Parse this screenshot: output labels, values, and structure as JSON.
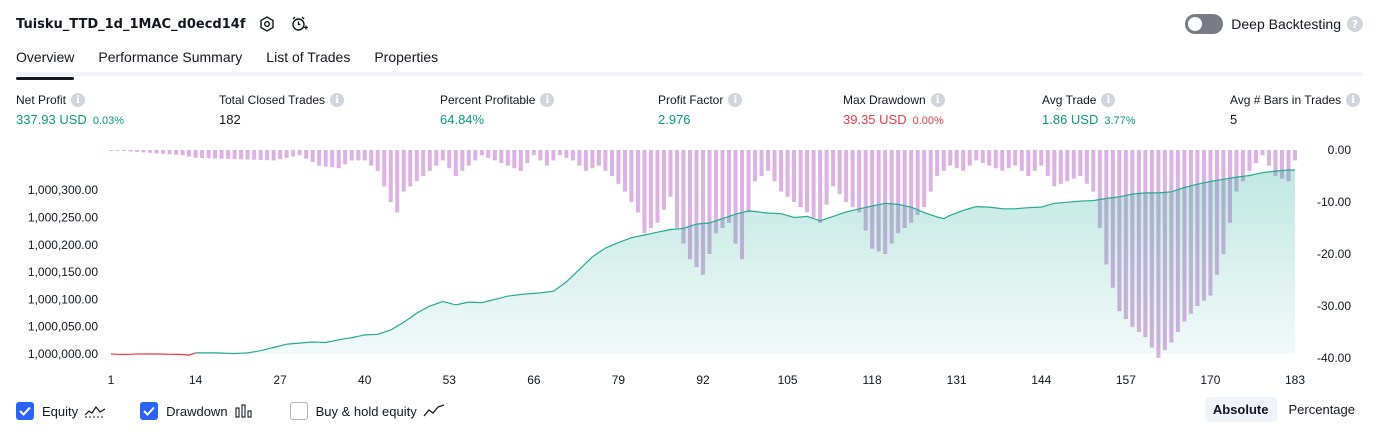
{
  "header": {
    "title": "Tuisku_TTD_1d_1MAC_d0ecd14f"
  },
  "deep_backtesting": {
    "label": "Deep Backtesting",
    "enabled": false
  },
  "tabs": [
    {
      "label": "Overview",
      "active": true
    },
    {
      "label": "Performance Summary",
      "active": false
    },
    {
      "label": "List of Trades",
      "active": false
    },
    {
      "label": "Properties",
      "active": false
    }
  ],
  "stats": [
    {
      "label": "Net Profit",
      "value": "337.93 USD",
      "pct": "0.03%",
      "color": "#089981"
    },
    {
      "label": "Total Closed Trades",
      "value": "182",
      "pct": "",
      "color": "#131722"
    },
    {
      "label": "Percent Profitable",
      "value": "64.84%",
      "pct": "",
      "color": "#089981"
    },
    {
      "label": "Profit Factor",
      "value": "2.976",
      "pct": "",
      "color": "#089981"
    },
    {
      "label": "Max Drawdown",
      "value": "39.35 USD",
      "pct": "0.00%",
      "color": "#f23645"
    },
    {
      "label": "Avg Trade",
      "value": "1.86 USD",
      "pct": "3.77%",
      "color": "#089981"
    },
    {
      "label": "Avg # Bars in Trades",
      "value": "5",
      "pct": "",
      "color": "#131722"
    }
  ],
  "chart_data": {
    "type": "area",
    "x_ticks": [
      "1",
      "14",
      "27",
      "40",
      "53",
      "66",
      "79",
      "92",
      "105",
      "118",
      "131",
      "144",
      "157",
      "170",
      "183"
    ],
    "left_axis_ticks": [
      "1,000,000.00",
      "1,000,050.00",
      "1,000,100.00",
      "1,000,150.00",
      "1,000,200.00",
      "1,000,250.00",
      "1,000,300.00"
    ],
    "right_axis_ticks": [
      "0.00",
      "-10.00",
      "-20.00",
      "-30.00",
      "-40.00"
    ],
    "equity_ylim": [
      1000000,
      1000337
    ],
    "drawdown_ylim": [
      -40,
      0
    ],
    "colors": {
      "equity_line": "#22ab94",
      "equity_fill": "#22ab94",
      "equity_negative": "#f23645",
      "drawdown_bar": "#ce93d8"
    },
    "equity_keypoints": [
      [
        1,
        1000000
      ],
      [
        3,
        999999
      ],
      [
        5,
        1000000
      ],
      [
        8,
        1000000
      ],
      [
        12,
        999999
      ],
      [
        13,
        999998
      ],
      [
        14,
        1000002
      ],
      [
        17,
        1000002
      ],
      [
        20,
        1000001
      ],
      [
        22,
        1000002
      ],
      [
        24,
        1000006
      ],
      [
        26,
        1000012
      ],
      [
        28,
        1000018
      ],
      [
        30,
        1000020
      ],
      [
        32,
        1000022
      ],
      [
        34,
        1000021
      ],
      [
        36,
        1000026
      ],
      [
        38,
        1000030
      ],
      [
        40,
        1000035
      ],
      [
        42,
        1000036
      ],
      [
        44,
        1000044
      ],
      [
        46,
        1000058
      ],
      [
        48,
        1000075
      ],
      [
        50,
        1000088
      ],
      [
        52,
        1000096
      ],
      [
        54,
        1000090
      ],
      [
        56,
        1000095
      ],
      [
        58,
        1000094
      ],
      [
        60,
        1000100
      ],
      [
        62,
        1000106
      ],
      [
        64,
        1000109
      ],
      [
        67,
        1000112
      ],
      [
        69,
        1000115
      ],
      [
        71,
        1000132
      ],
      [
        73,
        1000155
      ],
      [
        75,
        1000178
      ],
      [
        77,
        1000194
      ],
      [
        79,
        1000204
      ],
      [
        81,
        1000213
      ],
      [
        83,
        1000218
      ],
      [
        85,
        1000223
      ],
      [
        87,
        1000228
      ],
      [
        89,
        1000230
      ],
      [
        91,
        1000238
      ],
      [
        93,
        1000240
      ],
      [
        95,
        1000248
      ],
      [
        97,
        1000256
      ],
      [
        99,
        1000262
      ],
      [
        100,
        1000261
      ],
      [
        102,
        1000258
      ],
      [
        104,
        1000257
      ],
      [
        106,
        1000250
      ],
      [
        108,
        1000252
      ],
      [
        110,
        1000244
      ],
      [
        112,
        1000252
      ],
      [
        114,
        1000260
      ],
      [
        116,
        1000266
      ],
      [
        118,
        1000271
      ],
      [
        120,
        1000276
      ],
      [
        122,
        1000274
      ],
      [
        124,
        1000269
      ],
      [
        126,
        1000259
      ],
      [
        128,
        1000251
      ],
      [
        129,
        1000248
      ],
      [
        130,
        1000254
      ],
      [
        132,
        1000263
      ],
      [
        134,
        1000270
      ],
      [
        136,
        1000269
      ],
      [
        138,
        1000266
      ],
      [
        140,
        1000266
      ],
      [
        142,
        1000268
      ],
      [
        144,
        1000269
      ],
      [
        146,
        1000276
      ],
      [
        148,
        1000278
      ],
      [
        150,
        1000280
      ],
      [
        152,
        1000281
      ],
      [
        154,
        1000285
      ],
      [
        156,
        1000288
      ],
      [
        158,
        1000293
      ],
      [
        160,
        1000295
      ],
      [
        162,
        1000295
      ],
      [
        164,
        1000297
      ],
      [
        166,
        1000305
      ],
      [
        168,
        1000311
      ],
      [
        170,
        1000316
      ],
      [
        172,
        1000320
      ],
      [
        174,
        1000324
      ],
      [
        176,
        1000327
      ],
      [
        178,
        1000332
      ],
      [
        180,
        1000335
      ],
      [
        182,
        1000337
      ],
      [
        183,
        1000337
      ]
    ],
    "drawdown_keypoints": [
      [
        1,
        0
      ],
      [
        12,
        -1
      ],
      [
        14,
        -1.5
      ],
      [
        26,
        -2
      ],
      [
        30,
        -1
      ],
      [
        33,
        -3
      ],
      [
        36,
        -3.5
      ],
      [
        38,
        -2
      ],
      [
        40,
        -2
      ],
      [
        42,
        -4
      ],
      [
        44,
        -10
      ],
      [
        45,
        -12
      ],
      [
        46,
        -8
      ],
      [
        48,
        -6
      ],
      [
        50,
        -4
      ],
      [
        52,
        -2
      ],
      [
        54,
        -5
      ],
      [
        56,
        -3
      ],
      [
        58,
        -1
      ],
      [
        60,
        -2
      ],
      [
        62,
        -3
      ],
      [
        64,
        -4
      ],
      [
        66,
        -1
      ],
      [
        68,
        -3
      ],
      [
        70,
        -1
      ],
      [
        72,
        -2
      ],
      [
        74,
        -4
      ],
      [
        76,
        -3
      ],
      [
        78,
        -5
      ],
      [
        80,
        -8
      ],
      [
        82,
        -12
      ],
      [
        83,
        -16
      ],
      [
        85,
        -14
      ],
      [
        87,
        -9
      ],
      [
        88,
        -15
      ],
      [
        90,
        -21
      ],
      [
        92,
        -24
      ],
      [
        94,
        -16
      ],
      [
        96,
        -14
      ],
      [
        97,
        -18
      ],
      [
        98,
        -21
      ],
      [
        99,
        -12
      ],
      [
        100,
        -6
      ],
      [
        102,
        -4
      ],
      [
        104,
        -8
      ],
      [
        106,
        -10
      ],
      [
        108,
        -12
      ],
      [
        110,
        -14
      ],
      [
        112,
        -7
      ],
      [
        114,
        -10
      ],
      [
        116,
        -12
      ],
      [
        118,
        -19
      ],
      [
        120,
        -20
      ],
      [
        122,
        -16
      ],
      [
        124,
        -14
      ],
      [
        126,
        -11
      ],
      [
        128,
        -5
      ],
      [
        130,
        -3
      ],
      [
        132,
        -4
      ],
      [
        134,
        -2
      ],
      [
        136,
        -3
      ],
      [
        138,
        -4
      ],
      [
        140,
        -3
      ],
      [
        142,
        -5
      ],
      [
        144,
        -3
      ],
      [
        146,
        -7
      ],
      [
        148,
        -6
      ],
      [
        150,
        -5
      ],
      [
        152,
        -8
      ],
      [
        154,
        -22
      ],
      [
        156,
        -31
      ],
      [
        158,
        -34
      ],
      [
        160,
        -36
      ],
      [
        162,
        -40
      ],
      [
        164,
        -37
      ],
      [
        166,
        -33
      ],
      [
        168,
        -30
      ],
      [
        170,
        -28
      ],
      [
        172,
        -20
      ],
      [
        174,
        -8
      ],
      [
        176,
        -4
      ],
      [
        178,
        -1
      ],
      [
        180,
        -5
      ],
      [
        182,
        -6
      ],
      [
        183,
        -2
      ]
    ]
  },
  "legend": [
    {
      "label": "Equity",
      "checked": true
    },
    {
      "label": "Drawdown",
      "checked": true
    },
    {
      "label": "Buy & hold equity",
      "checked": false
    }
  ],
  "mode": [
    {
      "label": "Absolute",
      "active": true
    },
    {
      "label": "Percentage",
      "active": false
    }
  ]
}
